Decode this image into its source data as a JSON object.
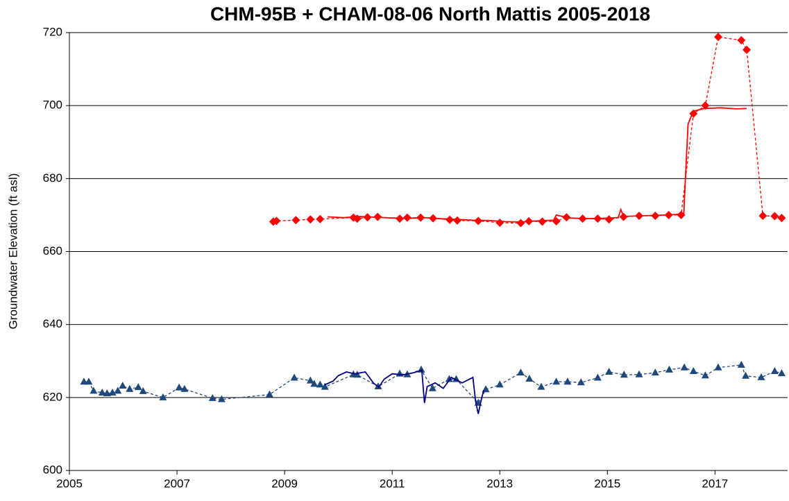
{
  "chart_data": {
    "type": "line",
    "title": "CHM-95B + CHAM-08-06 North Mattis 2005-2018",
    "y_label": "Groundwater Elevation (ft asl)",
    "xlim": [
      2005,
      2018.35
    ],
    "xticks": [
      2005,
      2007,
      2009,
      2011,
      2013,
      2015,
      2017
    ],
    "ylim": [
      600,
      720
    ],
    "yticks": [
      600,
      620,
      640,
      660,
      680,
      700,
      720
    ],
    "grid": true,
    "series": [
      {
        "color": "#ff0000",
        "marker": "diamond",
        "dashed": true,
        "x": [
          2008.79,
          2008.85,
          2009.21,
          2009.48,
          2009.66,
          2010.28,
          2010.35,
          2010.54,
          2010.73,
          2011.14,
          2011.28,
          2011.53,
          2011.76,
          2012.07,
          2012.21,
          2012.6,
          2013.0,
          2013.39,
          2013.54,
          2013.79,
          2014.05,
          2014.24,
          2014.54,
          2014.82,
          2015.03,
          2015.3,
          2015.59,
          2015.89,
          2016.14,
          2016.37,
          2016.6,
          2016.82,
          2017.06,
          2017.49,
          2017.59,
          2017.89,
          2018.11,
          2018.24
        ],
        "values": [
          668.2,
          668.4,
          668.6,
          668.8,
          668.9,
          669.3,
          669,
          669.4,
          669.5,
          669,
          669.3,
          669.3,
          669.1,
          668.7,
          668.5,
          668.4,
          667.9,
          667.8,
          668.3,
          668.2,
          668.3,
          669.4,
          669,
          669,
          668.8,
          669.5,
          669.8,
          669.8,
          670,
          670,
          697.8,
          700,
          718.8,
          717.9,
          715.3,
          669.8,
          669.7,
          669.2
        ]
      },
      {
        "color": "#ff0000",
        "marker": "none",
        "dashed": false,
        "x": [
          2009.8,
          2010.1,
          2010.4,
          2010.7,
          2011.0,
          2011.3,
          2011.6,
          2011.9,
          2012.2,
          2012.5,
          2012.8,
          2013.1,
          2013.4,
          2013.7,
          2014.0,
          2014.05,
          2014.3,
          2014.6,
          2014.9,
          2015.2,
          2015.25,
          2015.3,
          2015.6,
          2015.9,
          2016.2,
          2016.42,
          2016.45,
          2016.5,
          2016.6,
          2016.8,
          2017.1,
          2017.4,
          2017.59
        ],
        "values": [
          669.5,
          669.3,
          669.6,
          669.4,
          669.2,
          669.1,
          669.3,
          669.0,
          668.8,
          668.6,
          668.5,
          668.2,
          668.1,
          668.4,
          668.6,
          670.0,
          669.2,
          669.0,
          669.1,
          669.3,
          671.5,
          669.6,
          669.8,
          669.9,
          670.1,
          670.3,
          680,
          695,
          698.5,
          699.2,
          699.4,
          699.1,
          699.2
        ]
      },
      {
        "color": "#1f497d",
        "marker": "triangle",
        "dashed": true,
        "x": [
          2005.27,
          2005.36,
          2005.45,
          2005.61,
          2005.7,
          2005.8,
          2005.9,
          2005.99,
          2006.12,
          2006.28,
          2006.37,
          2006.74,
          2007.04,
          2007.14,
          2007.66,
          2007.83,
          2008.72,
          2009.18,
          2009.48,
          2009.55,
          2009.66,
          2009.75,
          2010.28,
          2010.35,
          2010.74,
          2011.14,
          2011.28,
          2011.54,
          2011.75,
          2012.06,
          2012.19,
          2012.6,
          2012.74,
          2013.0,
          2013.39,
          2013.55,
          2013.77,
          2014.05,
          2014.26,
          2014.51,
          2014.82,
          2015.03,
          2015.31,
          2015.59,
          2015.89,
          2016.15,
          2016.43,
          2016.6,
          2016.82,
          2017.06,
          2017.49,
          2017.57,
          2017.86,
          2018.11,
          2018.24
        ],
        "values": [
          624.3,
          624.3,
          621.8,
          621.3,
          621.1,
          621.3,
          621.8,
          623.2,
          622.3,
          622.8,
          621.7,
          620,
          622.7,
          622.3,
          619.8,
          619.5,
          620.8,
          625.4,
          624.6,
          623.7,
          623.5,
          622.9,
          626.3,
          626.2,
          623,
          626.5,
          626.3,
          627.6,
          622.5,
          625,
          625,
          618.5,
          622.2,
          623.5,
          626.8,
          625.1,
          622.9,
          624.3,
          624.3,
          624.1,
          625.4,
          627,
          626.2,
          626.3,
          626.8,
          627.6,
          628.2,
          627.2,
          626,
          628.2,
          628.9,
          625.9,
          625.5,
          627.2,
          626.6
        ]
      },
      {
        "color": "#000080",
        "marker": "none",
        "dashed": false,
        "x": [
          2009.75,
          2009.9,
          2010.0,
          2010.15,
          2010.3,
          2010.5,
          2010.65,
          2010.75,
          2010.85,
          2011.0,
          2011.2,
          2011.4,
          2011.55,
          2011.6,
          2011.65,
          2011.8,
          2011.95,
          2012.1,
          2012.3,
          2012.5,
          2012.55,
          2012.6,
          2012.65,
          2012.7
        ],
        "values": [
          623.5,
          624.5,
          626,
          627,
          626.5,
          627,
          624,
          622.8,
          625,
          626.5,
          626.2,
          626.8,
          627.5,
          618.5,
          623,
          624,
          622.5,
          625.5,
          624,
          625.5,
          619,
          615.5,
          619,
          622
        ]
      }
    ]
  }
}
